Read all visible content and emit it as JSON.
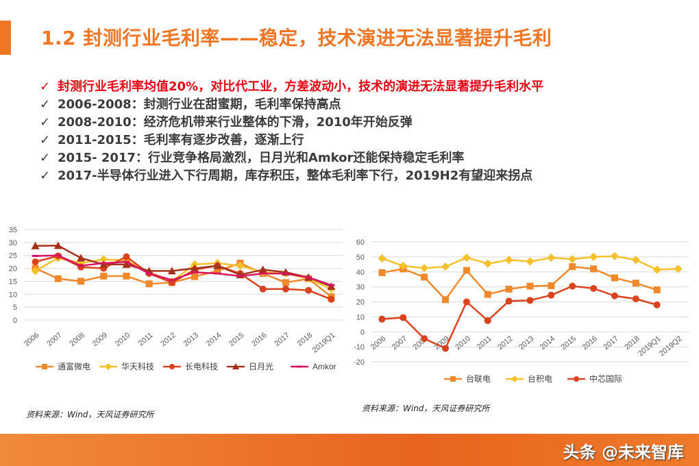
{
  "title": "1.2 封测行业毛利率——稳定，技术演进无法显著提升毛利",
  "bullets": [
    {
      "check": "✓",
      "text": "封测行业毛利率均值20%，对比代工业，方差波动小，技术的演进无法显著提升毛利水平",
      "highlight": true
    },
    {
      "check": "✓",
      "text": "2006-2008：封测行业在甜蜜期，毛利率保持高点",
      "highlight": false
    },
    {
      "check": "✓",
      "text": "2008-2010：经济危机带来行业整体的下滑，2010年开始反弹",
      "highlight": false
    },
    {
      "check": "✓",
      "text": "2011-2015：毛利率有逐步改善，逐渐上行",
      "highlight": false
    },
    {
      "check": "✓",
      "text": "2015- 2017：行业竞争格局激烈，日月光和Amkor还能保持稳定毛利率",
      "highlight": false
    },
    {
      "check": "✓",
      "text": "2017-半导体行业进入下行周期，库存积压，整体毛利率下行，2019H2有望迎来拐点",
      "highlight": false
    }
  ],
  "colors": {
    "accent": "#ee7624",
    "highlight": "#e60012"
  },
  "chart_data": [
    {
      "type": "line",
      "categories": [
        "2006",
        "2007",
        "2008",
        "2009",
        "2010",
        "2011",
        "2012",
        "2013",
        "2014",
        "2015",
        "2016",
        "2017",
        "2018",
        "2019Q1"
      ],
      "ylim": [
        0,
        35
      ],
      "yticks": [
        0,
        5,
        10,
        15,
        20,
        25,
        30,
        35
      ],
      "grid": true,
      "legend": "bottom",
      "series": [
        {
          "name": "通富微电",
          "color": "#f0882c",
          "marker": "square",
          "values": [
            20,
            16,
            15,
            17,
            17,
            14,
            14.5,
            16.8,
            19,
            22,
            18,
            14.5,
            16,
            9
          ]
        },
        {
          "name": "华天科技",
          "color": "#f5c02a",
          "marker": "diamond",
          "values": [
            19,
            24,
            22,
            23.5,
            23,
            18.5,
            15,
            21.5,
            22,
            21,
            18.5,
            18,
            16,
            12
          ]
        },
        {
          "name": "长电科技",
          "color": "#d9431e",
          "marker": "circle",
          "values": [
            22.5,
            24.8,
            20.5,
            20,
            24.5,
            18,
            14.5,
            19.5,
            21,
            18,
            12,
            12,
            11.5,
            8
          ]
        },
        {
          "name": "日月光",
          "color": "#a5321c",
          "marker": "triangle",
          "values": [
            28.7,
            28.8,
            24,
            21.5,
            21.5,
            19,
            19,
            20,
            21,
            17.5,
            19.5,
            18.5,
            16.5,
            13
          ]
        },
        {
          "name": "Amkor",
          "color": "#d6155e",
          "marker": "dash",
          "values": [
            24.8,
            25,
            21,
            22,
            22.5,
            18,
            15.5,
            18.5,
            18,
            17,
            18,
            18,
            16.5,
            13.5
          ]
        }
      ],
      "source": "资料来源：Wind，天风证券研究所"
    },
    {
      "type": "line",
      "categories": [
        "2006",
        "2007",
        "2008",
        "2009",
        "2010",
        "2011",
        "2012",
        "2013",
        "2014",
        "2015",
        "2016",
        "2017",
        "2018",
        "2019Q1",
        "2019Q2"
      ],
      "ylim": [
        -20,
        60
      ],
      "yticks": [
        -20,
        -10,
        0,
        10,
        20,
        30,
        40,
        50,
        60
      ],
      "grid": true,
      "legend": "bottom",
      "series": [
        {
          "name": "台联电",
          "color": "#f0882c",
          "marker": "square",
          "values": [
            39.5,
            42,
            36.5,
            21.5,
            41,
            25,
            28.5,
            30.5,
            30.8,
            43.5,
            42,
            36,
            32.5,
            28,
            null
          ]
        },
        {
          "name": "台积电",
          "color": "#f5c02a",
          "marker": "diamond",
          "values": [
            49,
            44,
            42.5,
            43.5,
            49.5,
            45.5,
            48,
            47,
            49.5,
            48.5,
            50,
            50.5,
            48,
            41.5,
            42
          ]
        },
        {
          "name": "中芯国际",
          "color": "#d9431e",
          "marker": "circle",
          "values": [
            8.5,
            9.5,
            -4.5,
            -11,
            20,
            7.5,
            20.5,
            21,
            24.5,
            30.5,
            29,
            24,
            22,
            18,
            null
          ]
        }
      ],
      "source": "资料来源：Wind，天风证券研究所"
    }
  ],
  "watermark": "头条 @未来智库"
}
